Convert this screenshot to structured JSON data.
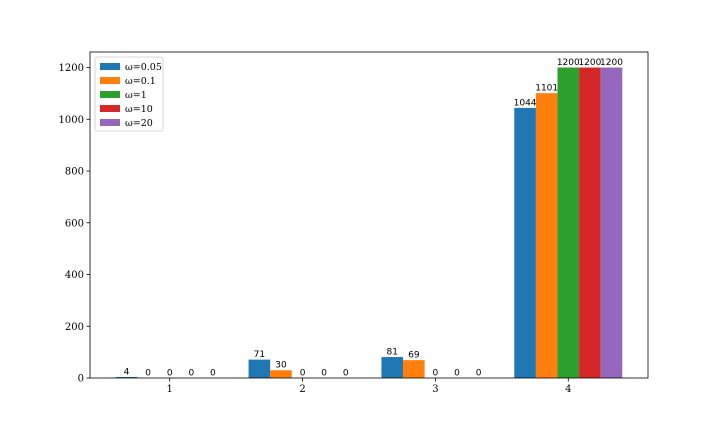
{
  "chart_data": {
    "type": "bar",
    "categories": [
      "1",
      "2",
      "3",
      "4"
    ],
    "series": [
      {
        "name": "ω=0.05",
        "color": "#1f77b4",
        "values": [
          4,
          71,
          81,
          1044
        ]
      },
      {
        "name": "ω=0.1",
        "color": "#ff7f0e",
        "values": [
          0,
          30,
          69,
          1101
        ]
      },
      {
        "name": "ω=1",
        "color": "#2ca02c",
        "values": [
          0,
          0,
          0,
          1200
        ]
      },
      {
        "name": "ω=10",
        "color": "#d62728",
        "values": [
          0,
          0,
          0,
          1200
        ]
      },
      {
        "name": "ω=20",
        "color": "#9467bd",
        "values": [
          0,
          0,
          0,
          1200
        ]
      }
    ],
    "yticks": [
      "0",
      "200",
      "400",
      "600",
      "800",
      "1000",
      "1200"
    ],
    "ylim": [
      0,
      1260
    ],
    "grid": false,
    "legend_position": "top-left"
  }
}
